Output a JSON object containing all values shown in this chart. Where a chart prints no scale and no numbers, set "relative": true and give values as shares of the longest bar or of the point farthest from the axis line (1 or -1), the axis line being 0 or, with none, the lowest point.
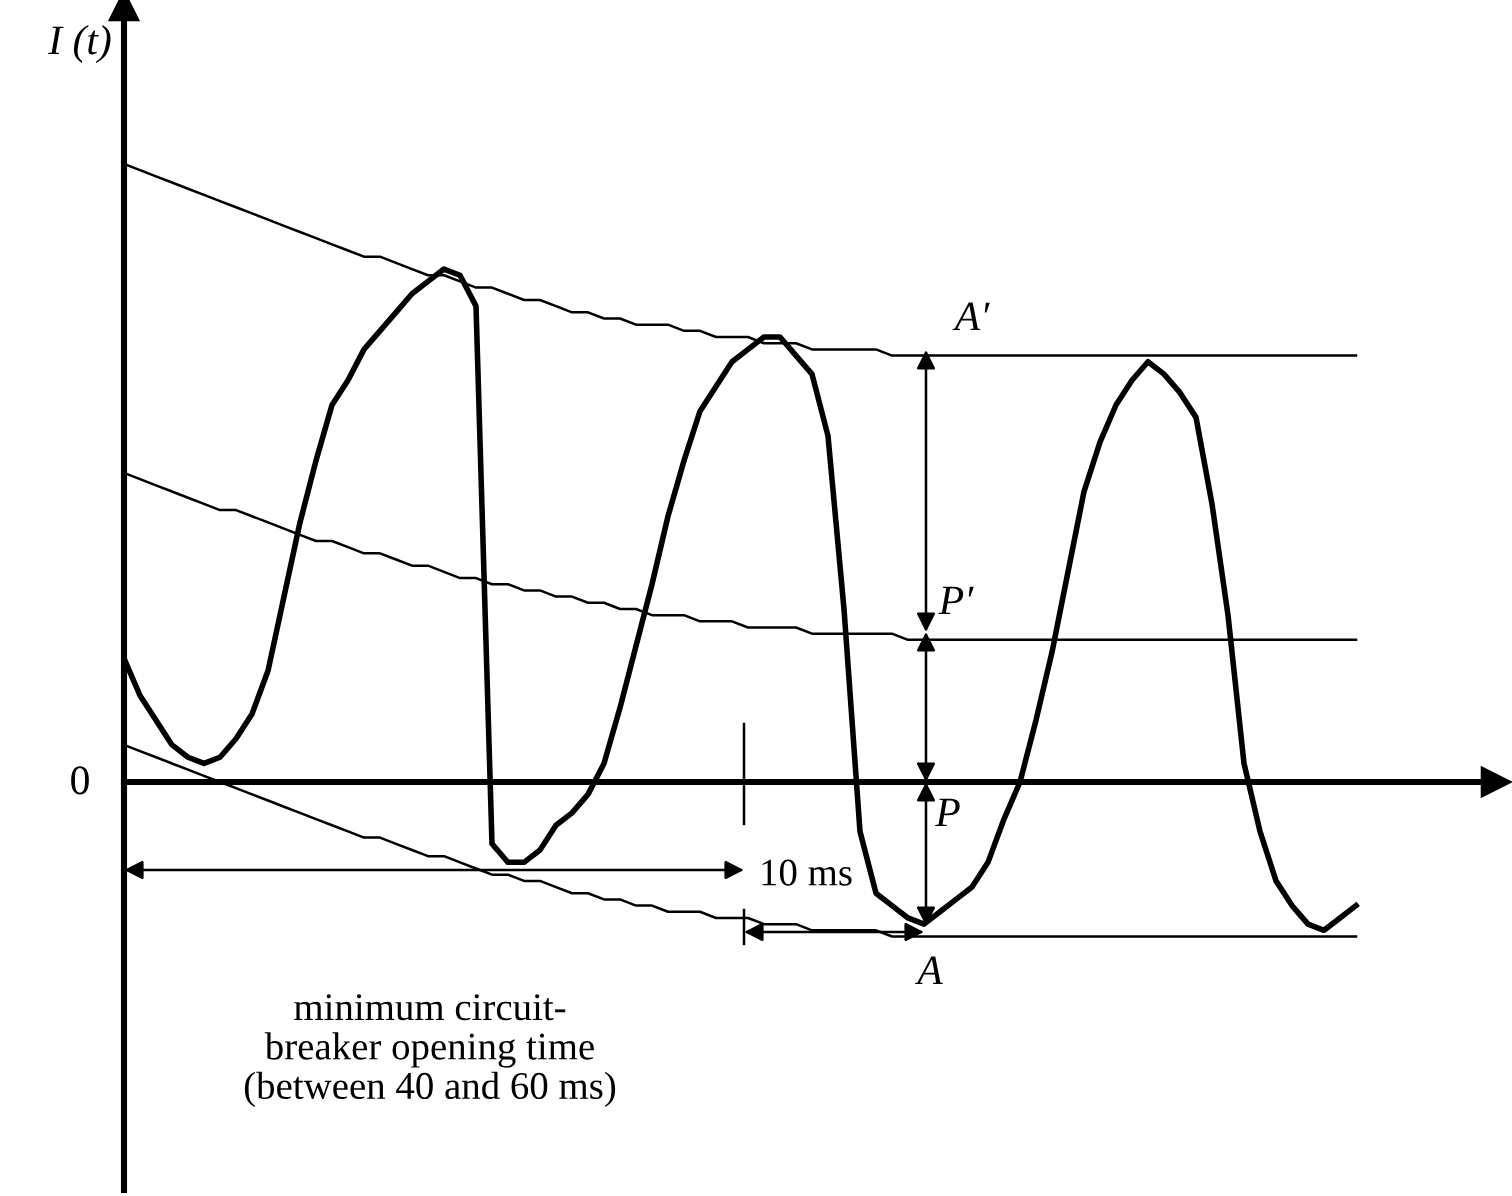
{
  "chart_data": {
    "type": "line",
    "relative": true,
    "ylabel": "I (t)",
    "grid": false,
    "marker": "none",
    "line_style": "solid",
    "categories": [
      null,
      null,
      null,
      null,
      null,
      null,
      null,
      null,
      null,
      null,
      null,
      null,
      null,
      null,
      null,
      null,
      null,
      null,
      null,
      null,
      null,
      null,
      null,
      null,
      null,
      null,
      null,
      null,
      null,
      null,
      null,
      null,
      null,
      null,
      null,
      null,
      null,
      null,
      null,
      null,
      null,
      null,
      null,
      null,
      null,
      null,
      null,
      null,
      null,
      null,
      null,
      null,
      null,
      null,
      null,
      null,
      null,
      null,
      null,
      null,
      null,
      null,
      null,
      null,
      null,
      null,
      null,
      null,
      null,
      null,
      null,
      null,
      null,
      null,
      null,
      null,
      null,
      null
    ],
    "series": [
      {
        "color": "#000000",
        "values": [
          0.2,
          0.14,
          0.1,
          0.06,
          0.04,
          0.03,
          0.04,
          0.07,
          0.11,
          0.18,
          0.3,
          0.42,
          0.52,
          0.61,
          0.65,
          0.7,
          0.73,
          0.76,
          0.79,
          0.81,
          0.83,
          0.82,
          0.77,
          -0.1,
          -0.13,
          -0.13,
          -0.11,
          -0.07,
          -0.05,
          -0.02,
          0.03,
          0.12,
          0.22,
          0.32,
          0.43,
          0.52,
          0.6,
          0.64,
          0.68,
          0.7,
          0.72,
          0.72,
          0.69,
          0.66,
          0.56,
          0.28,
          -0.08,
          -0.18,
          -0.2,
          -0.22,
          -0.23,
          -0.21,
          -0.19,
          -0.17,
          -0.13,
          -0.06,
          0.0,
          0.1,
          0.21,
          0.34,
          0.47,
          0.55,
          0.61,
          0.65,
          0.68,
          0.66,
          0.63,
          0.59,
          0.45,
          0.27,
          0.03,
          -0.08,
          -0.16,
          -0.2,
          -0.23,
          -0.24,
          -0.22,
          -0.2
        ]
      },
      {
        "color": "#000000",
        "values": [
          1.0,
          0.99,
          0.98,
          0.97,
          0.96,
          0.95,
          0.94,
          0.93,
          0.92,
          0.91,
          0.9,
          0.89,
          0.88,
          0.87,
          0.86,
          0.85,
          0.85,
          0.84,
          0.83,
          0.82,
          0.82,
          0.81,
          0.8,
          0.8,
          0.79,
          0.78,
          0.78,
          0.77,
          0.76,
          0.76,
          0.75,
          0.75,
          0.74,
          0.74,
          0.74,
          0.73,
          0.73,
          0.72,
          0.72,
          0.72,
          0.71,
          0.71,
          0.71,
          0.7,
          0.7,
          0.7,
          0.7,
          0.7,
          0.69,
          0.69,
          0.69,
          0.69,
          0.69,
          0.69,
          0.69,
          0.69,
          0.69,
          0.69,
          0.69,
          0.69,
          0.69,
          0.69,
          0.69,
          0.69,
          0.69,
          0.69,
          0.69,
          0.69,
          0.69,
          0.69,
          0.69,
          0.69,
          0.69,
          0.69,
          0.69,
          0.69,
          0.69,
          0.69
        ]
      },
      {
        "color": "#000000",
        "values": [
          0.5,
          0.49,
          0.48,
          0.47,
          0.46,
          0.45,
          0.44,
          0.44,
          0.43,
          0.42,
          0.41,
          0.4,
          0.39,
          0.39,
          0.38,
          0.37,
          0.37,
          0.36,
          0.35,
          0.35,
          0.34,
          0.33,
          0.33,
          0.32,
          0.32,
          0.31,
          0.31,
          0.3,
          0.3,
          0.29,
          0.29,
          0.28,
          0.28,
          0.27,
          0.27,
          0.27,
          0.26,
          0.26,
          0.26,
          0.25,
          0.25,
          0.25,
          0.25,
          0.24,
          0.24,
          0.24,
          0.24,
          0.24,
          0.24,
          0.23,
          0.23,
          0.23,
          0.23,
          0.23,
          0.23,
          0.23,
          0.23,
          0.23,
          0.23,
          0.23,
          0.23,
          0.23,
          0.23,
          0.23,
          0.23,
          0.23,
          0.23,
          0.23,
          0.23,
          0.23,
          0.23,
          0.23,
          0.23,
          0.23,
          0.23,
          0.23,
          0.23,
          0.23
        ]
      },
      {
        "color": "#000000",
        "values": [
          0.06,
          0.05,
          0.04,
          0.03,
          0.02,
          0.01,
          0.0,
          -0.01,
          -0.02,
          -0.03,
          -0.04,
          -0.05,
          -0.06,
          -0.07,
          -0.08,
          -0.09,
          -0.09,
          -0.1,
          -0.11,
          -0.12,
          -0.12,
          -0.13,
          -0.14,
          -0.15,
          -0.15,
          -0.16,
          -0.16,
          -0.17,
          -0.18,
          -0.18,
          -0.19,
          -0.19,
          -0.2,
          -0.2,
          -0.21,
          -0.21,
          -0.21,
          -0.22,
          -0.22,
          -0.22,
          -0.23,
          -0.23,
          -0.23,
          -0.24,
          -0.24,
          -0.24,
          -0.24,
          -0.24,
          -0.25,
          -0.25,
          -0.25,
          -0.25,
          -0.25,
          -0.25,
          -0.25,
          -0.25,
          -0.25,
          -0.25,
          -0.25,
          -0.25,
          -0.25,
          -0.25,
          -0.25,
          -0.25,
          -0.25,
          -0.25,
          -0.25,
          -0.25,
          -0.25,
          -0.25,
          -0.25,
          -0.25,
          -0.25,
          -0.25,
          -0.25,
          -0.25,
          -0.25,
          -0.25
        ]
      }
    ],
    "annotations": [
      "0",
      "A′",
      "P′",
      "P",
      "A",
      "10 ms",
      "minimum circuit-\nbreaker opening time\n(between 40 and 60 ms)"
    ]
  }
}
